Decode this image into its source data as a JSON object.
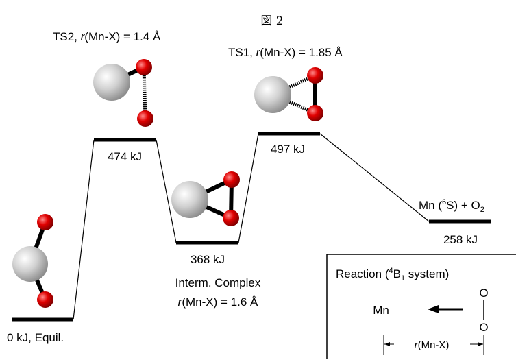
{
  "title": "図 2",
  "states": [
    {
      "energy_label": "0 kJ, Equil."
    },
    {
      "name": [
        "TS2, ",
        "r",
        "(Mn-X) = 1.4 Å"
      ],
      "energy_label": "474 kJ"
    },
    {
      "name": [
        "Interm. Complex"
      ],
      "detail": [
        "r",
        "(Mn-X) = 1.6 Å"
      ],
      "energy_label": "368 kJ"
    },
    {
      "name": [
        "TS1, ",
        "r",
        "(Mn-X) = 1.85 Å"
      ],
      "energy_label": "497 kJ"
    },
    {
      "name": [
        "Mn (",
        "6",
        "S) + O",
        "2"
      ],
      "energy_label": "258 kJ"
    }
  ],
  "inset": {
    "title": [
      "Reaction (",
      "4",
      "B",
      "1",
      " system)"
    ],
    "atom_mn": "Mn",
    "atom_o1": "O",
    "atom_o2": "O",
    "distance": [
      "r",
      "(Mn-X)"
    ]
  }
}
